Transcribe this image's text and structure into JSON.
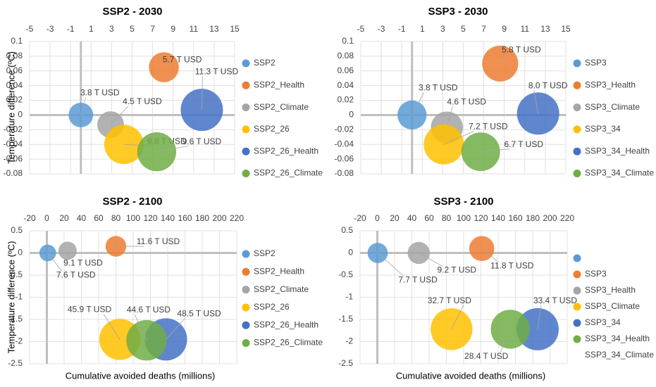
{
  "chart_data": [
    {
      "type": "bubble",
      "title": "SSP2 - 2030",
      "ylabel": "Temperature difference (ºC)",
      "xlim": [
        -5,
        15
      ],
      "xticks": [
        -5,
        -3,
        -1,
        1,
        3,
        5,
        7,
        9,
        11,
        13,
        15
      ],
      "ylim": [
        -0.08,
        0.1
      ],
      "yticks": [
        0.1,
        0.08,
        0.06,
        0.04,
        0.02,
        0,
        -0.02,
        -0.04,
        -0.06,
        -0.08
      ],
      "grid": true,
      "series": [
        {
          "name": "SSP2",
          "color": "#5b9bd5",
          "x": [
            0
          ],
          "values": [
            0
          ],
          "sizes": [
            3.8
          ],
          "size_labels": [
            "3.8 T USD"
          ]
        },
        {
          "name": "SSP2_Health",
          "color": "#ed7d31",
          "x": [
            8.1
          ],
          "values": [
            0.065
          ],
          "sizes": [
            5.7
          ],
          "size_labels": [
            "5.7 T USD"
          ]
        },
        {
          "name": "SSP2_Climate",
          "color": "#a5a5a5",
          "x": [
            2.9
          ],
          "values": [
            -0.013
          ],
          "sizes": [
            4.5
          ],
          "size_labels": [
            "4.5 T USD"
          ]
        },
        {
          "name": "SSP2_26",
          "color": "#ffc000",
          "x": [
            4.2
          ],
          "values": [
            -0.04
          ],
          "sizes": [
            9.8
          ],
          "size_labels": [
            "9.8 T USD"
          ]
        },
        {
          "name": "SSP2_26_Health",
          "color": "#4472c4",
          "x": [
            11.8
          ],
          "values": [
            0.007
          ],
          "sizes": [
            11.3
          ],
          "size_labels": [
            "11.3 T USD"
          ]
        },
        {
          "name": "SSP2_26_Climate",
          "color": "#70ad47",
          "x": [
            7.4
          ],
          "values": [
            -0.05
          ],
          "sizes": [
            9.6
          ],
          "size_labels": [
            "9.6 T USD"
          ]
        }
      ]
    },
    {
      "type": "bubble",
      "title": "SSP3 - 2030",
      "xlim": [
        -5,
        15
      ],
      "xticks": [
        -5,
        -3,
        -1,
        1,
        3,
        5,
        7,
        9,
        11,
        13,
        15
      ],
      "ylim": [
        -0.08,
        0.1
      ],
      "yticks": [
        0.1,
        0.08,
        0.06,
        0.04,
        0.02,
        0,
        -0.02,
        -0.04,
        -0.06,
        -0.08
      ],
      "grid": true,
      "series": [
        {
          "name": "SSP3",
          "color": "#5b9bd5",
          "x": [
            0
          ],
          "values": [
            0
          ],
          "sizes": [
            3.8
          ],
          "size_labels": [
            "3.8 T USD"
          ]
        },
        {
          "name": "SSP3_Health",
          "color": "#ed7d31",
          "x": [
            8.6
          ],
          "values": [
            0.07
          ],
          "sizes": [
            5.8
          ],
          "size_labels": [
            "5.8 T USD"
          ]
        },
        {
          "name": "SSP3_Climate",
          "color": "#a5a5a5",
          "x": [
            3.4
          ],
          "values": [
            -0.017
          ],
          "sizes": [
            4.6
          ],
          "size_labels": [
            "4.6 T USD"
          ]
        },
        {
          "name": "SSP3_34",
          "color": "#ffc000",
          "x": [
            3.1
          ],
          "values": [
            -0.04
          ],
          "sizes": [
            7.2
          ],
          "size_labels": [
            "7.2 T USD"
          ]
        },
        {
          "name": "SSP3_34_Health",
          "color": "#4472c4",
          "x": [
            12.3
          ],
          "values": [
            0.002
          ],
          "sizes": [
            8.0
          ],
          "size_labels": [
            "8.0 T USD"
          ]
        },
        {
          "name": "SSP3_34_Climate",
          "color": "#70ad47",
          "x": [
            6.7
          ],
          "values": [
            -0.05
          ],
          "sizes": [
            6.7
          ],
          "size_labels": [
            "6.7 T USD"
          ]
        }
      ]
    },
    {
      "type": "bubble",
      "title": "SSP2 - 2100",
      "ylabel": "Temperature difference (ºC)",
      "xlabel": "Cumulative avoided deaths (millions)",
      "xlim": [
        -20,
        220
      ],
      "xticks": [
        -20,
        0,
        20,
        40,
        60,
        80,
        100,
        120,
        140,
        160,
        180,
        200,
        220
      ],
      "ylim": [
        -2.5,
        0.5
      ],
      "yticks": [
        0.5,
        0,
        -0.5,
        -1,
        -1.5,
        -2,
        -2.5
      ],
      "grid": true,
      "series": [
        {
          "name": "SSP2",
          "color": "#5b9bd5",
          "x": [
            1
          ],
          "values": [
            0
          ],
          "sizes": [
            7.6
          ],
          "size_labels": [
            "7.6 T USD"
          ]
        },
        {
          "name": "SSP2_Health",
          "color": "#ed7d31",
          "x": [
            80
          ],
          "values": [
            0.15
          ],
          "sizes": [
            11.6
          ],
          "size_labels": [
            "11.6 T USD"
          ]
        },
        {
          "name": "SSP2_Climate",
          "color": "#a5a5a5",
          "x": [
            24
          ],
          "values": [
            0.05
          ],
          "sizes": [
            9.1
          ],
          "size_labels": [
            "9.1 T USD"
          ]
        },
        {
          "name": "SSP2_26",
          "color": "#ffc000",
          "x": [
            84.5
          ],
          "values": [
            -1.95
          ],
          "sizes": [
            45.9
          ],
          "size_labels": [
            "45.9 T USD"
          ]
        },
        {
          "name": "SSP2_26_Health",
          "color": "#4472c4",
          "x": [
            138
          ],
          "values": [
            -1.95
          ],
          "sizes": [
            48.5
          ],
          "size_labels": [
            "48.5 T USD"
          ]
        },
        {
          "name": "SSP2_26_Climate",
          "color": "#70ad47",
          "x": [
            115.5
          ],
          "values": [
            -1.97
          ],
          "sizes": [
            44.6
          ],
          "size_labels": [
            "44.6 T USD"
          ]
        }
      ]
    },
    {
      "type": "bubble",
      "title": "SSP3 - 2100",
      "xlabel": "Cumulative avoided deaths (millions)",
      "xlim": [
        -20,
        220
      ],
      "xticks": [
        -20,
        0,
        20,
        40,
        60,
        80,
        100,
        120,
        140,
        160,
        180,
        200,
        220
      ],
      "ylim": [
        -2.5,
        0.5
      ],
      "yticks": [
        0.5,
        0,
        -0.5,
        -1,
        -1.5,
        -2,
        -2.5
      ],
      "grid": true,
      "legend_extra": "SSP3_34_Climate",
      "series": [
        {
          "name": null,
          "color": "#5b9bd5",
          "x": [
            0.4
          ],
          "values": [
            0
          ],
          "sizes": [
            7.7
          ],
          "size_labels": [
            "7.7 T USD"
          ]
        },
        {
          "name": "SSP3",
          "color": "#ed7d31",
          "x": [
            121
          ],
          "values": [
            0.1
          ],
          "sizes": [
            11.8
          ],
          "size_labels": [
            "11.8 T USD"
          ]
        },
        {
          "name": "SSP3_Health",
          "color": "#a5a5a5",
          "x": [
            48
          ],
          "values": [
            0
          ],
          "sizes": [
            9.2
          ],
          "size_labels": [
            "9.2 T USD"
          ]
        },
        {
          "name": "SSP3_Climate",
          "color": "#ffc000",
          "x": [
            86
          ],
          "values": [
            -1.72
          ],
          "sizes": [
            32.7
          ],
          "size_labels": [
            "32.7 T USD"
          ]
        },
        {
          "name": "SSP3_34",
          "color": "#4472c4",
          "x": [
            185.7
          ],
          "values": [
            -1.72
          ],
          "sizes": [
            33.4
          ],
          "size_labels": [
            "33.4 T USD"
          ]
        },
        {
          "name": "SSP3_34_Health",
          "color": "#70ad47",
          "x": [
            154
          ],
          "values": [
            -1.72
          ],
          "sizes": [
            28.4
          ],
          "size_labels": [
            "28.4 T USD"
          ]
        }
      ]
    }
  ]
}
